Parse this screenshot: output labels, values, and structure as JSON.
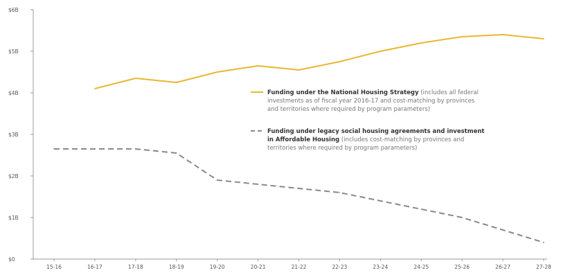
{
  "chart_data": {
    "type": "line",
    "title": "",
    "xlabel": "",
    "ylabel": "",
    "categories": [
      "15-16",
      "16-17",
      "17-18",
      "18-19",
      "19-20",
      "20-21",
      "21-22",
      "22-23",
      "23-24",
      "24-25",
      "25-26",
      "26-27",
      "27-28"
    ],
    "y_ticks": [
      "$0",
      "$1B",
      "$2B",
      "$3B",
      "$4B",
      "$5B",
      "$6B"
    ],
    "ylim": [
      0,
      6
    ],
    "grid": false,
    "legend_position": "center-right",
    "series": [
      {
        "name_bold": "Funding under the National Housing Strategy",
        "name_detail_lines": [
          " (includes all federal",
          "investments as of fiscal year 2016-17 and cost-matching by provinces",
          "and territories where required by program parameters)"
        ],
        "color": "#e8b630",
        "style": "solid",
        "values": [
          null,
          4.1,
          4.35,
          4.25,
          4.5,
          4.65,
          4.55,
          4.75,
          5.0,
          5.2,
          5.35,
          5.4,
          5.3
        ]
      },
      {
        "name_bold_lines": [
          "Funding under legacy social housing agreements and investment",
          "in Affordable Housing"
        ],
        "name_detail_lines": [
          " (includes cost-matching by provinces and",
          "territories where required by program parameters)"
        ],
        "color": "#888888",
        "style": "dashed",
        "values": [
          2.65,
          2.65,
          2.65,
          2.55,
          1.9,
          1.8,
          1.7,
          1.6,
          1.4,
          1.2,
          1.0,
          0.7,
          0.4
        ]
      }
    ]
  }
}
